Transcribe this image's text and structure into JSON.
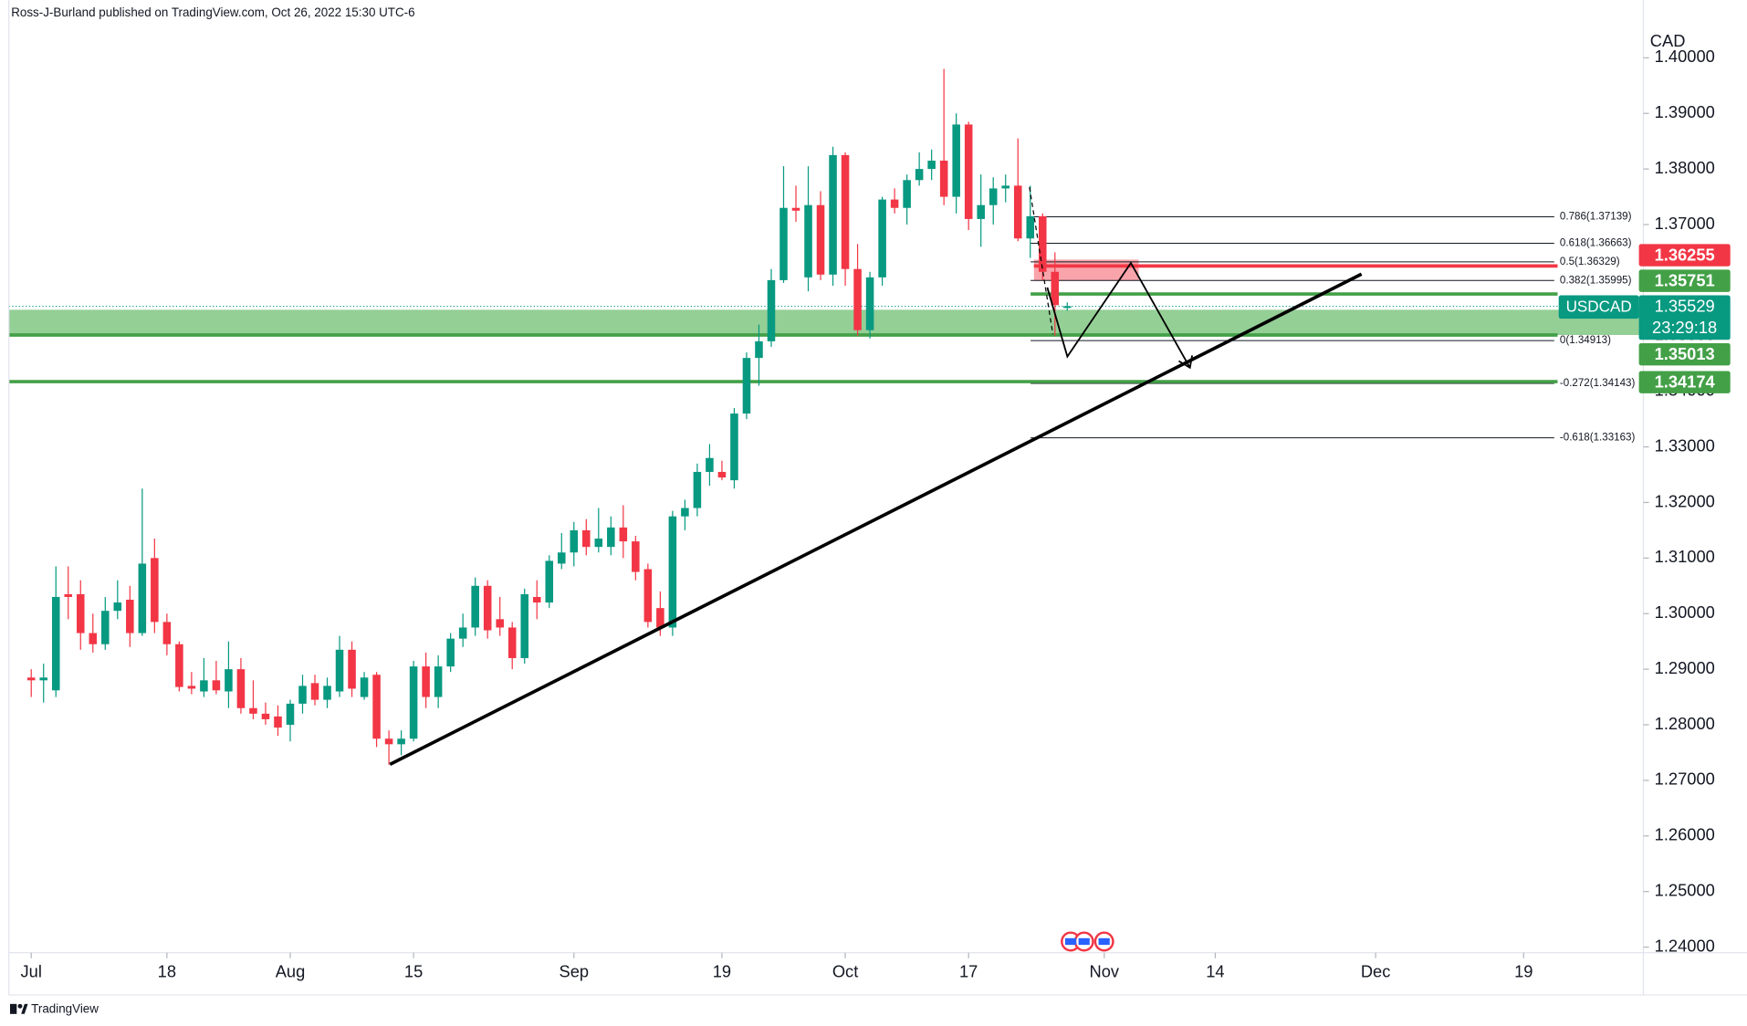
{
  "header": {
    "author_line": "Ross-J-Burland published on TradingView.com, Oct 26, 2022 15:30 UTC-6"
  },
  "chart_data": {
    "type": "candlestick",
    "symbol": "USDCAD",
    "currency": "CAD",
    "countdown": "23:29:18",
    "categories": [
      "Jul",
      null,
      null,
      null,
      null,
      null,
      null,
      null,
      null,
      null,
      null,
      "18",
      null,
      null,
      null,
      null,
      null,
      null,
      null,
      null,
      null,
      "Aug",
      null,
      null,
      null,
      null,
      null,
      null,
      null,
      null,
      null,
      "15",
      null,
      null,
      null,
      null,
      null,
      null,
      null,
      null,
      null,
      null,
      null,
      null,
      "Sep",
      null,
      null,
      null,
      null,
      null,
      null,
      null,
      null,
      null,
      null,
      null,
      "19",
      null,
      null,
      null,
      null,
      null,
      null,
      null,
      null,
      null,
      "Oct",
      null,
      null,
      null,
      null,
      null,
      null,
      null,
      null,
      null,
      "17",
      null,
      null,
      null,
      null,
      null,
      null,
      null,
      null,
      null,
      null,
      "Nov",
      null,
      null,
      null,
      null,
      null,
      null,
      null,
      null,
      "14",
      null,
      null,
      null,
      null,
      null,
      null,
      null,
      null,
      null,
      null,
      null,
      null,
      "Dec",
      null,
      null,
      null,
      null,
      null,
      null,
      null,
      null,
      null,
      null,
      null,
      "19",
      null,
      null,
      null,
      null,
      null,
      null,
      null,
      null,
      null
    ],
    "open": [
      1.2885,
      1.288,
      1.2862,
      1.3035,
      1.3035,
      1.2965,
      1.2945,
      1.3005,
      1.3025,
      1.2965,
      1.31,
      1.2985,
      1.2945,
      1.287,
      1.286,
      1.288,
      1.286,
      1.29,
      1.283,
      1.282,
      1.2815,
      1.28,
      1.2838,
      1.2875,
      1.2845,
      1.286,
      1.2935,
      1.285,
      1.289,
      1.2775,
      1.2765,
      1.2775,
      1.2905,
      1.285,
      1.2905,
      1.2955,
      1.2975,
      1.305,
      1.299,
      1.2975,
      1.292,
      1.303,
      1.302,
      1.309,
      1.311,
      1.315,
      1.312,
      1.312,
      1.3155,
      1.313,
      1.308,
      1.301,
      1.2975,
      1.3175,
      1.319,
      1.3255,
      1.3255,
      1.324,
      1.336,
      1.346,
      1.349,
      1.36,
      1.373,
      1.3605,
      1.3735,
      1.361,
      1.3825,
      1.362,
      1.351,
      1.3605,
      1.3745,
      1.373,
      1.378,
      1.38,
      1.3815,
      1.375,
      1.388,
      1.371,
      1.3735,
      1.3765,
      1.377,
      1.3675,
      1.3715,
      1.3615,
      1.355,
      null,
      null,
      null,
      null,
      null,
      null,
      null,
      null,
      null,
      null,
      null,
      null,
      null,
      null,
      null,
      null,
      null,
      null,
      null,
      null,
      null,
      null,
      null,
      null,
      null,
      null,
      null,
      null,
      null,
      null,
      null,
      null,
      null,
      null,
      null,
      null,
      null,
      null,
      null,
      null,
      null,
      null,
      null,
      null,
      null,
      null
    ],
    "high": [
      1.29,
      1.291,
      1.3085,
      1.3085,
      1.306,
      1.3,
      1.303,
      1.306,
      1.305,
      1.3225,
      1.3135,
      1.3,
      1.295,
      1.2895,
      1.292,
      1.2915,
      1.295,
      1.292,
      1.288,
      1.284,
      1.2835,
      1.2845,
      1.289,
      1.289,
      1.2885,
      1.296,
      1.295,
      1.2895,
      1.2895,
      1.279,
      1.279,
      1.2915,
      1.293,
      1.2925,
      1.2965,
      1.3,
      1.3065,
      1.306,
      1.303,
      1.2985,
      1.3045,
      1.306,
      1.3105,
      1.3145,
      1.3165,
      1.317,
      1.319,
      1.3175,
      1.3195,
      1.314,
      1.309,
      1.304,
      1.3185,
      1.3205,
      1.327,
      1.3305,
      1.3275,
      1.337,
      1.347,
      1.352,
      1.362,
      1.3805,
      1.377,
      1.3805,
      1.376,
      1.384,
      1.383,
      1.3665,
      1.3615,
      1.375,
      1.3765,
      1.379,
      1.383,
      1.3835,
      1.398,
      1.39,
      1.3885,
      1.379,
      1.3785,
      1.379,
      1.3855,
      1.377,
      1.372,
      1.365,
      1.356,
      null,
      null,
      null,
      null,
      null,
      null,
      null,
      null,
      null,
      null,
      null,
      null,
      null,
      null,
      null,
      null,
      null,
      null,
      null,
      null,
      null,
      null,
      null,
      null,
      null,
      null,
      null,
      null,
      null,
      null,
      null,
      null,
      null,
      null,
      null,
      null,
      null,
      null,
      null,
      null,
      null,
      null,
      null,
      null,
      null,
      null
    ],
    "low": [
      1.285,
      1.284,
      1.285,
      1.299,
      1.2935,
      1.293,
      1.2935,
      1.299,
      1.294,
      1.296,
      1.2965,
      1.2925,
      1.286,
      1.2855,
      1.285,
      1.2855,
      1.283,
      1.282,
      1.281,
      1.28,
      1.278,
      1.277,
      1.282,
      1.2835,
      1.283,
      1.285,
      1.285,
      1.2845,
      1.276,
      1.2728,
      1.2745,
      1.277,
      1.283,
      1.283,
      1.2895,
      1.294,
      1.296,
      1.2955,
      1.296,
      1.29,
      1.291,
      1.299,
      1.301,
      1.308,
      1.3085,
      1.3105,
      1.311,
      1.3105,
      1.31,
      1.306,
      1.2975,
      1.296,
      1.296,
      1.315,
      1.3175,
      1.323,
      1.324,
      1.3225,
      1.335,
      1.341,
      1.348,
      1.3595,
      1.3705,
      1.358,
      1.36,
      1.359,
      1.359,
      1.35,
      1.3495,
      1.359,
      1.372,
      1.37,
      1.377,
      1.378,
      1.3735,
      1.372,
      1.369,
      1.366,
      1.37,
      1.374,
      1.367,
      1.364,
      1.36,
      1.35,
      1.3545,
      null,
      null,
      null,
      null,
      null,
      null,
      null,
      null,
      null,
      null,
      null,
      null,
      null,
      null,
      null,
      null,
      null,
      null,
      null,
      null,
      null,
      null,
      null,
      null,
      null,
      null,
      null,
      null,
      null,
      null,
      null,
      null,
      null,
      null,
      null,
      null,
      null,
      null,
      null,
      null,
      null,
      null,
      null,
      null,
      null,
      null
    ],
    "close": [
      1.288,
      1.2885,
      1.303,
      1.303,
      1.2965,
      1.2945,
      1.3005,
      1.302,
      1.2965,
      1.309,
      1.2985,
      1.2945,
      1.2868,
      1.2865,
      1.288,
      1.2862,
      1.29,
      1.283,
      1.282,
      1.281,
      1.2795,
      1.2838,
      1.287,
      1.2845,
      1.287,
      1.2935,
      1.2865,
      1.2885,
      1.2775,
      1.2765,
      1.2775,
      1.2905,
      1.285,
      1.2905,
      1.2955,
      1.2975,
      1.305,
      1.297,
      1.2975,
      1.292,
      1.3035,
      1.302,
      1.3095,
      1.311,
      1.315,
      1.312,
      1.3135,
      1.3155,
      1.313,
      1.3075,
      1.2985,
      1.2975,
      1.3175,
      1.319,
      1.3255,
      1.328,
      1.3245,
      1.336,
      1.346,
      1.349,
      1.36,
      1.373,
      1.3725,
      1.3735,
      1.361,
      1.3825,
      1.362,
      1.351,
      1.3605,
      1.3745,
      1.373,
      1.378,
      1.38,
      1.3815,
      1.375,
      1.388,
      1.371,
      1.3735,
      1.3765,
      1.377,
      1.3675,
      1.3715,
      1.3615,
      1.3555,
      1.3553,
      null,
      null,
      null,
      null,
      null,
      null,
      null,
      null,
      null,
      null,
      null,
      null,
      null,
      null,
      null,
      null,
      null,
      null,
      null,
      null,
      null,
      null,
      null,
      null,
      null,
      null,
      null,
      null,
      null,
      null,
      null,
      null,
      null,
      null,
      null,
      null,
      null,
      null,
      null,
      null,
      null,
      null,
      null,
      null,
      null,
      null
    ],
    "up_color": "#089981",
    "down_color": "#f23645",
    "ylim": [
      1.239,
      1.4104
    ],
    "yticks": [
      {
        "value": 1.24,
        "label": "1.24000"
      },
      {
        "value": 1.25,
        "label": "1.25000"
      },
      {
        "value": 1.26,
        "label": "1.26000"
      },
      {
        "value": 1.27,
        "label": "1.27000"
      },
      {
        "value": 1.28,
        "label": "1.28000"
      },
      {
        "value": 1.29,
        "label": "1.29000"
      },
      {
        "value": 1.3,
        "label": "1.30000"
      },
      {
        "value": 1.31,
        "label": "1.31000"
      },
      {
        "value": 1.32,
        "label": "1.32000"
      },
      {
        "value": 1.33,
        "label": "1.33000"
      },
      {
        "value": 1.34,
        "label": "1.34000"
      },
      {
        "value": 1.35,
        "label": "1.35000"
      },
      {
        "value": 1.36,
        "label": "1.36000"
      },
      {
        "value": 1.37,
        "label": "1.37000"
      },
      {
        "value": 1.38,
        "label": "1.38000"
      },
      {
        "value": 1.39,
        "label": "1.39000"
      },
      {
        "value": 1.4,
        "label": "1.40000"
      }
    ],
    "last_price": 1.35529,
    "last_color": "#089981",
    "levels": [
      {
        "value": 1.36255,
        "color": "#f23645"
      },
      {
        "value": 1.35751,
        "color": "#43a047"
      },
      {
        "value": 1.35013,
        "color": "#43a047"
      },
      {
        "value": 1.34174,
        "color": "#43a047"
      }
    ],
    "fib_levels": [
      {
        "value": 1.37139,
        "label": "0.786(1.37139)"
      },
      {
        "value": 1.36663,
        "label": "0.618(1.36663)"
      },
      {
        "value": 1.36329,
        "label": "0.5(1.36329)"
      },
      {
        "value": 1.35995,
        "label": "0.382(1.35995)"
      },
      {
        "value": 1.34913,
        "label": "0(1.34913)"
      },
      {
        "value": 1.34143,
        "label": "-0.272(1.34143)"
      },
      {
        "value": 1.33163,
        "label": "-0.618(1.33163)"
      }
    ]
  },
  "footer": {
    "brand": "TradingView"
  }
}
